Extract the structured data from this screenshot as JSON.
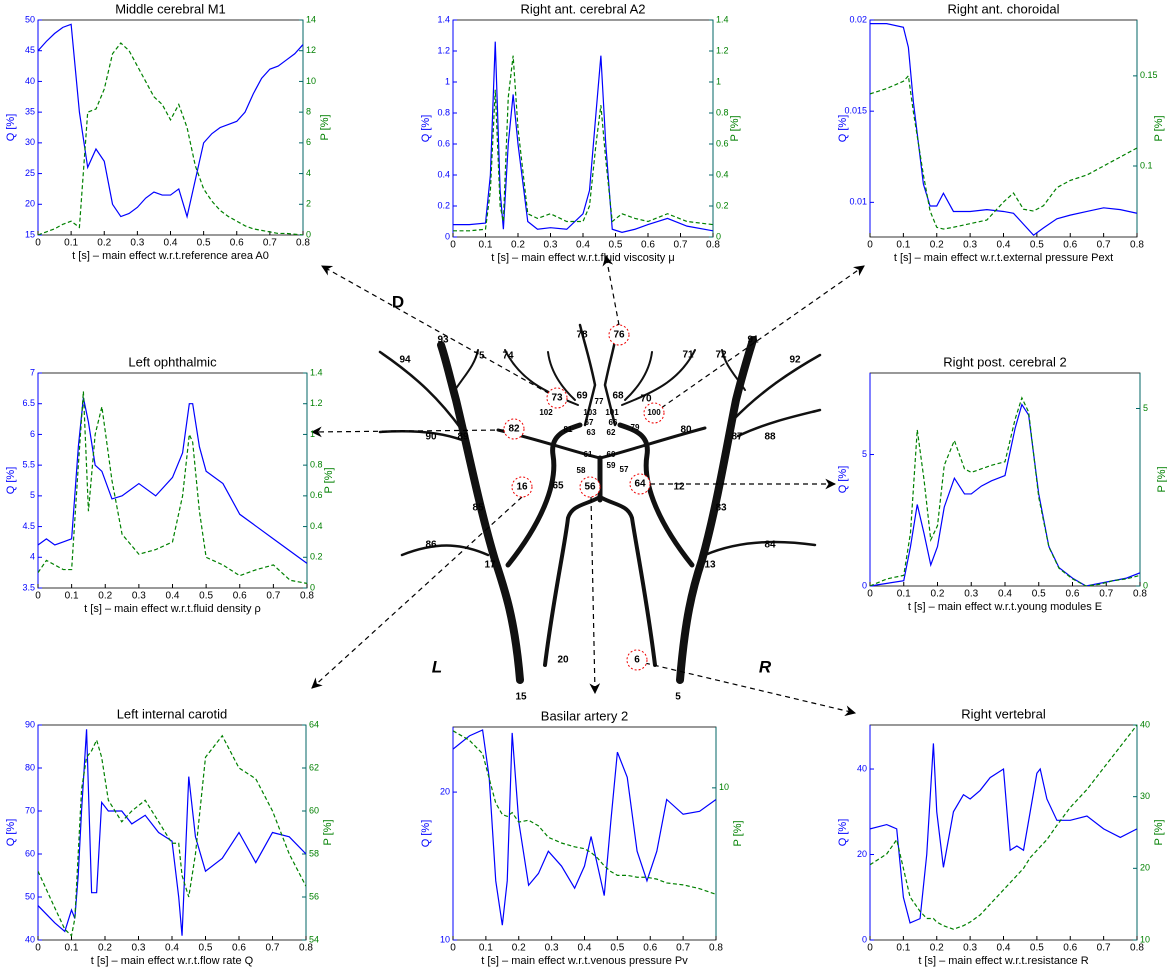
{
  "chart_data": [
    {
      "type": "line",
      "title": "Middle cerebral M1",
      "xlabel": "t [s] – main effect w.r.t.reference area A0",
      "ylabel": "Q [%]",
      "y2label": "P [%]",
      "x": [
        0,
        0.025,
        0.05,
        0.075,
        0.1,
        0.125,
        0.15,
        0.175,
        0.2,
        0.225,
        0.25,
        0.275,
        0.3,
        0.325,
        0.35,
        0.375,
        0.4,
        0.425,
        0.45,
        0.475,
        0.5,
        0.525,
        0.55,
        0.575,
        0.6,
        0.625,
        0.65,
        0.675,
        0.7,
        0.725,
        0.75,
        0.775,
        0.8
      ],
      "xlim": [
        0,
        0.8
      ],
      "xticks": [
        0,
        0.1,
        0.2,
        0.3,
        0.4,
        0.5,
        0.6,
        0.7,
        0.8
      ],
      "ylim": [
        15,
        50
      ],
      "yticks": [
        15,
        20,
        25,
        30,
        35,
        40,
        45,
        50
      ],
      "y2lim": [
        0,
        14
      ],
      "y2ticks": [
        0,
        2,
        4,
        6,
        8,
        10,
        12,
        14
      ],
      "series": [
        {
          "color": "#0000ff",
          "values": [
            45,
            46.5,
            47.8,
            48.8,
            49.3,
            35,
            26,
            29,
            27,
            20,
            18,
            18.5,
            19.5,
            21,
            22,
            21.5,
            21.5,
            22.5,
            18,
            24,
            30,
            31.5,
            32.5,
            33,
            33.5,
            35,
            38,
            40.5,
            42,
            42.5,
            43.5,
            44.5,
            46
          ]
        },
        {
          "color": "#008000",
          "dash": true,
          "axis": "y2",
          "values": [
            0,
            0.2,
            0.4,
            0.7,
            0.9,
            0.5,
            8,
            8.2,
            9.5,
            11.8,
            12.5,
            12,
            11,
            10,
            9,
            8.5,
            7.5,
            8.5,
            7,
            4.5,
            3,
            2.2,
            1.6,
            1.2,
            0.9,
            0.6,
            0.4,
            0.3,
            0.2,
            0.1,
            0.1,
            0.05,
            0
          ]
        }
      ]
    },
    {
      "type": "line",
      "title": "Right ant. cerebral A2",
      "xlabel": "t [s] – main effect w.r.t.fluid viscosity μ",
      "ylabel": "Q [%]",
      "y2label": "P [%]",
      "x": [
        0,
        0.05,
        0.1,
        0.115,
        0.13,
        0.145,
        0.155,
        0.17,
        0.185,
        0.2,
        0.23,
        0.26,
        0.3,
        0.35,
        0.4,
        0.42,
        0.44,
        0.455,
        0.47,
        0.49,
        0.52,
        0.56,
        0.6,
        0.66,
        0.72,
        0.8
      ],
      "xlim": [
        0,
        0.8
      ],
      "xticks": [
        0,
        0.1,
        0.2,
        0.3,
        0.4,
        0.5,
        0.6,
        0.7,
        0.8
      ],
      "ylim": [
        0,
        1.4
      ],
      "yticks": [
        0,
        0.2,
        0.4,
        0.6,
        0.8,
        1,
        1.2,
        1.4
      ],
      "y2lim": [
        0,
        1.4
      ],
      "y2ticks": [
        0,
        0.2,
        0.4,
        0.6,
        0.8,
        1,
        1.2,
        1.4
      ],
      "series": [
        {
          "color": "#0000ff",
          "values": [
            0.08,
            0.08,
            0.09,
            0.4,
            1.26,
            0.3,
            0.05,
            0.6,
            0.92,
            0.6,
            0.1,
            0.05,
            0.06,
            0.05,
            0.15,
            0.3,
            0.8,
            1.17,
            0.6,
            0.05,
            0.03,
            0.05,
            0.08,
            0.12,
            0.07,
            0.04
          ]
        },
        {
          "color": "#008000",
          "dash": true,
          "axis": "y2",
          "values": [
            0.04,
            0.04,
            0.05,
            0.3,
            0.95,
            0.2,
            0.1,
            0.9,
            1.17,
            0.7,
            0.15,
            0.12,
            0.15,
            0.1,
            0.1,
            0.2,
            0.6,
            0.85,
            0.5,
            0.1,
            0.15,
            0.12,
            0.1,
            0.15,
            0.1,
            0.08
          ]
        }
      ]
    },
    {
      "type": "line",
      "title": "Right ant. choroidal",
      "xlabel": "t [s] – main effect w.r.t.external pressure Pext",
      "ylabel": "Q [%]",
      "y2label": "P [%]",
      "x": [
        0,
        0.05,
        0.1,
        0.115,
        0.13,
        0.16,
        0.18,
        0.2,
        0.22,
        0.25,
        0.3,
        0.35,
        0.4,
        0.43,
        0.46,
        0.49,
        0.52,
        0.56,
        0.6,
        0.65,
        0.7,
        0.75,
        0.8
      ],
      "xlim": [
        0,
        0.8
      ],
      "xticks": [
        0,
        0.1,
        0.2,
        0.3,
        0.4,
        0.5,
        0.6,
        0.7,
        0.8
      ],
      "ylim": [
        0.0081,
        0.02
      ],
      "yticks": [
        0.01,
        0.015,
        0.02
      ],
      "y2lim": [
        0.0606,
        0.181
      ],
      "y2ticks": [
        0.1,
        0.15
      ],
      "series": [
        {
          "color": "#0000ff",
          "values": [
            0.0198,
            0.0198,
            0.0196,
            0.0185,
            0.0155,
            0.011,
            0.0098,
            0.0098,
            0.0105,
            0.0095,
            0.0095,
            0.0096,
            0.0095,
            0.0094,
            0.0088,
            0.0082,
            0.0086,
            0.0091,
            0.0093,
            0.0095,
            0.0097,
            0.0096,
            0.0094
          ]
        },
        {
          "color": "#008000",
          "dash": true,
          "axis": "y2",
          "values": [
            0.14,
            0.143,
            0.147,
            0.15,
            0.13,
            0.095,
            0.075,
            0.066,
            0.065,
            0.066,
            0.068,
            0.07,
            0.08,
            0.085,
            0.076,
            0.075,
            0.078,
            0.088,
            0.092,
            0.095,
            0.1,
            0.105,
            0.11
          ]
        }
      ]
    },
    {
      "type": "line",
      "title": "Left ophthalmic",
      "xlabel": "t [s] – main effect w.r.t.fluid density ρ",
      "ylabel": "Q [%]",
      "y2label": "P [%]",
      "x": [
        0,
        0.025,
        0.05,
        0.075,
        0.1,
        0.12,
        0.135,
        0.15,
        0.17,
        0.19,
        0.22,
        0.25,
        0.3,
        0.35,
        0.4,
        0.43,
        0.45,
        0.46,
        0.48,
        0.5,
        0.55,
        0.6,
        0.65,
        0.7,
        0.75,
        0.8
      ],
      "xlim": [
        0,
        0.8
      ],
      "xticks": [
        0,
        0.1,
        0.2,
        0.3,
        0.4,
        0.5,
        0.6,
        0.7,
        0.8
      ],
      "ylim": [
        3.5,
        7
      ],
      "yticks": [
        3.5,
        4,
        4.5,
        5,
        5.5,
        6,
        6.5,
        7
      ],
      "y2lim": [
        0,
        1.4
      ],
      "y2ticks": [
        0,
        0.2,
        0.4,
        0.6,
        0.8,
        1,
        1.2,
        1.4
      ],
      "series": [
        {
          "color": "#0000ff",
          "values": [
            4.2,
            4.3,
            4.2,
            4.25,
            4.3,
            5.8,
            6.6,
            6.2,
            5.5,
            5.4,
            4.95,
            5.0,
            5.2,
            5.0,
            5.3,
            5.7,
            6.5,
            6.5,
            5.8,
            5.4,
            5.2,
            4.7,
            4.5,
            4.3,
            4.1,
            3.9
          ]
        },
        {
          "color": "#008000",
          "dash": true,
          "axis": "y2",
          "values": [
            0.1,
            0.18,
            0.15,
            0.12,
            0.12,
            0.8,
            1.28,
            0.5,
            1.0,
            1.18,
            0.7,
            0.35,
            0.22,
            0.25,
            0.3,
            0.6,
            1.0,
            0.95,
            0.5,
            0.2,
            0.15,
            0.08,
            0.12,
            0.15,
            0.05,
            0.03
          ]
        }
      ]
    },
    {
      "type": "line",
      "title": "Right post. cerebral 2",
      "xlabel": "t [s] – main effect w.r.t.young modules E",
      "ylabel": "Q [%]",
      "y2label": "P [%]",
      "x": [
        0,
        0.05,
        0.1,
        0.12,
        0.14,
        0.16,
        0.18,
        0.2,
        0.22,
        0.25,
        0.28,
        0.3,
        0.33,
        0.36,
        0.4,
        0.43,
        0.45,
        0.47,
        0.5,
        0.53,
        0.56,
        0.6,
        0.64,
        0.68,
        0.72,
        0.76,
        0.8
      ],
      "xlim": [
        0,
        0.8
      ],
      "xticks": [
        0,
        0.1,
        0.2,
        0.3,
        0.4,
        0.5,
        0.6,
        0.7,
        0.8
      ],
      "ylim": [
        0,
        8.1
      ],
      "yticks": [
        0,
        5
      ],
      "y2lim": [
        0,
        6
      ],
      "y2ticks": [
        0,
        5
      ],
      "series": [
        {
          "color": "#0000ff",
          "values": [
            0,
            0.1,
            0.2,
            1.5,
            3.1,
            2.0,
            0.8,
            1.5,
            3.0,
            4.1,
            3.5,
            3.5,
            3.8,
            4.0,
            4.2,
            6.0,
            6.9,
            6.5,
            3.5,
            1.5,
            0.7,
            0.3,
            0,
            0.1,
            0.2,
            0.3,
            0.5
          ]
        },
        {
          "color": "#008000",
          "dash": true,
          "axis": "y2",
          "values": [
            0,
            0.2,
            0.3,
            1.5,
            4.4,
            3.0,
            1.3,
            1.7,
            3.4,
            4.1,
            3.3,
            3.2,
            3.3,
            3.4,
            3.5,
            4.7,
            5.3,
            4.9,
            2.5,
            1.1,
            0.5,
            0.2,
            0,
            0.05,
            0.15,
            0.2,
            0.3
          ]
        }
      ]
    },
    {
      "type": "line",
      "title": "Left internal carotid",
      "xlabel": "t [s] – main effect w.r.t.flow rate Q",
      "ylabel": "Q [%]",
      "y2label": "P [%]",
      "x": [
        0,
        0.05,
        0.08,
        0.1,
        0.11,
        0.12,
        0.13,
        0.145,
        0.16,
        0.175,
        0.19,
        0.21,
        0.25,
        0.28,
        0.32,
        0.36,
        0.4,
        0.42,
        0.43,
        0.45,
        0.47,
        0.5,
        0.55,
        0.6,
        0.65,
        0.7,
        0.75,
        0.8
      ],
      "xlim": [
        0,
        0.8
      ],
      "xticks": [
        0,
        0.1,
        0.2,
        0.3,
        0.4,
        0.5,
        0.6,
        0.7,
        0.8
      ],
      "ylim": [
        40,
        90
      ],
      "yticks": [
        40,
        50,
        60,
        70,
        80,
        90
      ],
      "y2lim": [
        54,
        64
      ],
      "y2ticks": [
        54,
        56,
        58,
        60,
        62,
        64
      ],
      "series": [
        {
          "color": "#0000ff",
          "values": [
            48,
            44,
            42,
            47,
            45,
            55,
            70,
            89,
            51,
            51,
            72,
            70,
            70,
            67,
            69,
            65,
            63,
            50,
            41,
            78,
            64,
            56,
            59,
            65,
            58,
            65,
            64,
            60
          ]
        },
        {
          "color": "#008000",
          "dash": true,
          "axis": "y2",
          "values": [
            57.2,
            55.5,
            54.5,
            54.2,
            55,
            58,
            61,
            62.5,
            62.8,
            63.3,
            62.5,
            60.5,
            59.5,
            60,
            60.5,
            59.5,
            58.5,
            58.5,
            57,
            56,
            58,
            62.5,
            63.5,
            62,
            61.5,
            60,
            58,
            56.5
          ]
        }
      ]
    },
    {
      "type": "line",
      "title": "Basilar artery 2",
      "xlabel": "t [s] – main effect w.r.t.venous pressure Pv",
      "ylabel": "Q [%]",
      "y2label": "P [%]",
      "x": [
        0,
        0.05,
        0.09,
        0.11,
        0.13,
        0.15,
        0.165,
        0.18,
        0.2,
        0.23,
        0.26,
        0.29,
        0.33,
        0.37,
        0.4,
        0.42,
        0.44,
        0.46,
        0.48,
        0.5,
        0.53,
        0.56,
        0.59,
        0.62,
        0.65,
        0.7,
        0.75,
        0.8
      ],
      "xlim": [
        0,
        0.8
      ],
      "xticks": [
        0,
        0.1,
        0.2,
        0.3,
        0.4,
        0.5,
        0.6,
        0.7,
        0.8
      ],
      "ylim": [
        10,
        24.4
      ],
      "yticks": [
        10,
        20
      ],
      "y2lim": [
        2,
        13.2
      ],
      "y2ticks": [
        10
      ],
      "series": [
        {
          "color": "#0000ff",
          "values": [
            22.9,
            23.8,
            24.2,
            21,
            14,
            11,
            14,
            24,
            18,
            13.7,
            14.5,
            16,
            15,
            13.5,
            15,
            17,
            15,
            13,
            18,
            22.7,
            21,
            16,
            14,
            16,
            19.5,
            18.5,
            18.7,
            19.5
          ]
        },
        {
          "color": "#008000",
          "dash": true,
          "axis": "y2",
          "values": [
            13.0,
            12.5,
            11.8,
            10.5,
            9.2,
            8.6,
            8.5,
            8.7,
            8.2,
            8.3,
            8.0,
            7.4,
            7.1,
            6.9,
            6.8,
            6.6,
            6.3,
            5.9,
            5.6,
            5.4,
            5.4,
            5.3,
            5.3,
            5.2,
            5.0,
            4.9,
            4.7,
            4.4
          ]
        }
      ]
    },
    {
      "type": "line",
      "title": "Right vertebral",
      "xlabel": "t [s] – main effect w.r.t.resistance R",
      "ylabel": "Q [%]",
      "y2label": "P [%]",
      "x": [
        0,
        0.05,
        0.08,
        0.1,
        0.12,
        0.15,
        0.17,
        0.19,
        0.2,
        0.22,
        0.25,
        0.28,
        0.3,
        0.33,
        0.36,
        0.4,
        0.42,
        0.44,
        0.46,
        0.48,
        0.5,
        0.51,
        0.53,
        0.56,
        0.6,
        0.65,
        0.7,
        0.75,
        0.8
      ],
      "xlim": [
        0,
        0.8
      ],
      "xticks": [
        0,
        0.1,
        0.2,
        0.3,
        0.4,
        0.5,
        0.6,
        0.7,
        0.8
      ],
      "ylim": [
        0,
        50.3
      ],
      "yticks": [
        0,
        20,
        40
      ],
      "y2lim": [
        10,
        40
      ],
      "y2ticks": [
        10,
        20,
        30,
        40
      ],
      "series": [
        {
          "color": "#0000ff",
          "values": [
            26,
            27,
            26,
            10,
            4,
            5,
            20,
            46,
            30,
            17,
            30,
            34,
            33,
            35,
            38,
            40,
            21,
            22,
            21,
            30,
            39,
            40,
            33,
            28,
            28,
            29,
            26,
            24,
            26
          ]
        },
        {
          "color": "#008000",
          "dash": true,
          "axis": "y2",
          "values": [
            20.5,
            22,
            24,
            20,
            16,
            14,
            13,
            13,
            12.5,
            12,
            11.5,
            12,
            12.5,
            13.5,
            15,
            17,
            18,
            19,
            20,
            21.5,
            22.5,
            23,
            24,
            26,
            28.5,
            31,
            34,
            37,
            40
          ]
        }
      ]
    }
  ],
  "diagram": {
    "labels": [
      "D",
      "L",
      "R",
      "93",
      "75",
      "74",
      "78",
      "76",
      "71",
      "72",
      "91",
      "94",
      "92",
      "73",
      "77",
      "69",
      "68",
      "70",
      "102",
      "103",
      "101",
      "100",
      "67",
      "66",
      "81",
      "63",
      "62",
      "79",
      "82",
      "90",
      "89",
      "80",
      "87",
      "88",
      "61",
      "60",
      "59",
      "58",
      "57",
      "65",
      "56",
      "64",
      "12",
      "16",
      "85",
      "83",
      "86",
      "84",
      "17",
      "13",
      "20",
      "6",
      "15",
      "5"
    ]
  }
}
